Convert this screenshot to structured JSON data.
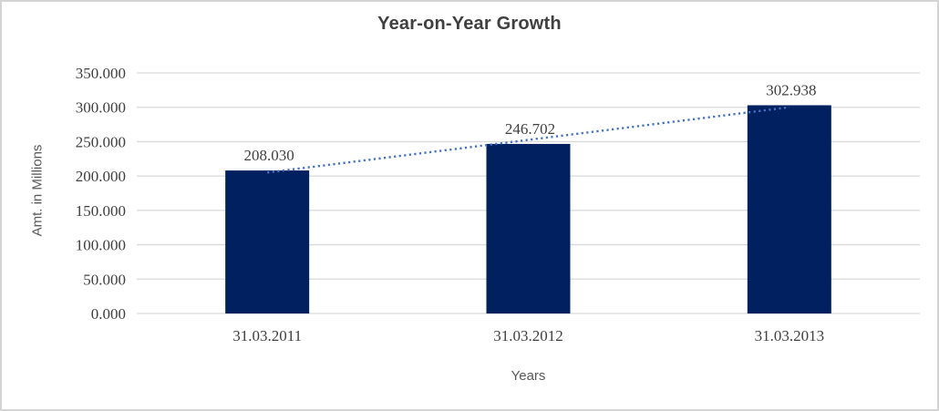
{
  "window": {
    "background": "#FFFFFF",
    "border_color": "#D4D4D4"
  },
  "chart_data": {
    "type": "bar",
    "title": "Year-on-Year Growth",
    "xlabel": "Years",
    "ylabel": "Amt. in Millions",
    "categories": [
      "31.03.2011",
      "31.03.2012",
      "31.03.2013"
    ],
    "values": [
      208.03,
      246.702,
      302.938
    ],
    "data_labels": [
      "208.030",
      "246.702",
      "302.938"
    ],
    "ylim": [
      0,
      350
    ],
    "y_tick_step": 50,
    "y_tick_labels": [
      "0.000",
      "50.000",
      "100.000",
      "150.000",
      "200.000",
      "250.000",
      "300.000",
      "350.000"
    ],
    "grid": true,
    "legend": "none",
    "bar_color": "#002060",
    "gridline_color": "#D9D9D9",
    "label_color": "#3F3F3F",
    "title_color": "#404040",
    "axis_title_color": "#595959",
    "trendline": {
      "type": "linear",
      "style": "dotted",
      "color": "#4472C4"
    }
  }
}
